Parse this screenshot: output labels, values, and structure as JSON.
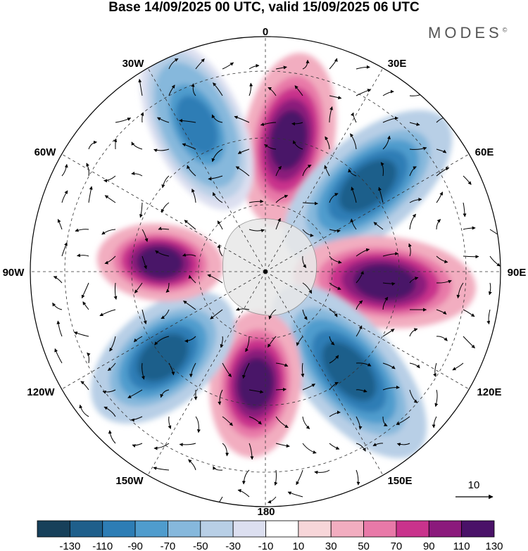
{
  "title": "Base 14/09/2025 00 UTC, valid 15/09/2025 06 UTC",
  "brand": "MODES",
  "brand_mark": "©",
  "map": {
    "projection": "south-polar-stereographic",
    "longitude_labels": [
      "0",
      "30E",
      "60E",
      "90E",
      "120E",
      "150E",
      "180",
      "150W",
      "120W",
      "90W",
      "60W",
      "30W"
    ],
    "vector_reference": "10",
    "anomaly_centers": [
      {
        "lon": "10E",
        "sign": "positive",
        "value": 130
      },
      {
        "lon": "50E",
        "sign": "negative",
        "value": -130
      },
      {
        "lon": "95E",
        "sign": "positive",
        "value": 130
      },
      {
        "lon": "140E",
        "sign": "negative",
        "value": -130
      },
      {
        "lon": "175W",
        "sign": "positive",
        "value": 130
      },
      {
        "lon": "130W",
        "sign": "negative",
        "value": -130
      },
      {
        "lon": "85W",
        "sign": "positive",
        "value": 130
      },
      {
        "lon": "25W",
        "sign": "negative",
        "value": -110
      }
    ]
  },
  "colorbar": {
    "labels": [
      "-130",
      "-110",
      "-90",
      "-70",
      "-50",
      "-30",
      "-10",
      "10",
      "30",
      "50",
      "70",
      "90",
      "110",
      "130"
    ],
    "colors": [
      "#17405a",
      "#1f5f8b",
      "#2d7db5",
      "#4f9ccd",
      "#86b8dc",
      "#b8cfe6",
      "#dcdff0",
      "#ffffff",
      "#f7d6d9",
      "#f2adc0",
      "#e879a8",
      "#c9338c",
      "#8b1a7c",
      "#4a1268"
    ]
  }
}
